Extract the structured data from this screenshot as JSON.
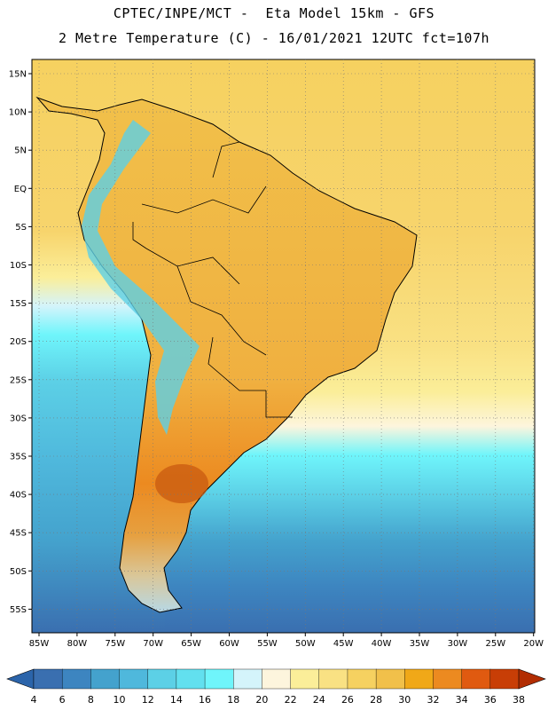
{
  "header": {
    "line1": "CPTEC/INPE/MCT -  Eta Model 15km - GFS",
    "line2": "2 Metre Temperature (C) - 16/01/2021 12UTC fct=107h"
  },
  "map": {
    "region": "South America",
    "lat_labels": [
      "15N",
      "10N",
      "5N",
      "EQ",
      "5S",
      "10S",
      "15S",
      "20S",
      "25S",
      "30S",
      "35S",
      "40S",
      "45S",
      "50S",
      "55S"
    ],
    "lon_labels": [
      "85W",
      "80W",
      "75W",
      "70W",
      "65W",
      "60W",
      "55W",
      "50W",
      "45W",
      "40W",
      "35W",
      "30W",
      "25W",
      "20W"
    ],
    "grid": true
  },
  "colorbar": {
    "ticks": [
      "4",
      "6",
      "8",
      "10",
      "12",
      "14",
      "16",
      "18",
      "20",
      "22",
      "24",
      "26",
      "28",
      "30",
      "32",
      "34",
      "36",
      "38"
    ],
    "colors": [
      "#3a6fb0",
      "#3d85c0",
      "#44a2cd",
      "#4fb8dc",
      "#5cd0e6",
      "#62e0ef",
      "#6ff5fb",
      "#d4f4fb",
      "#fdf5dd",
      "#fbee99",
      "#f9e183",
      "#f6d160",
      "#f1c04a",
      "#f0a818",
      "#ec8a20",
      "#e05a10",
      "#c83e06"
    ],
    "under_color": "#2b64aa",
    "over_color": "#b22d02"
  }
}
